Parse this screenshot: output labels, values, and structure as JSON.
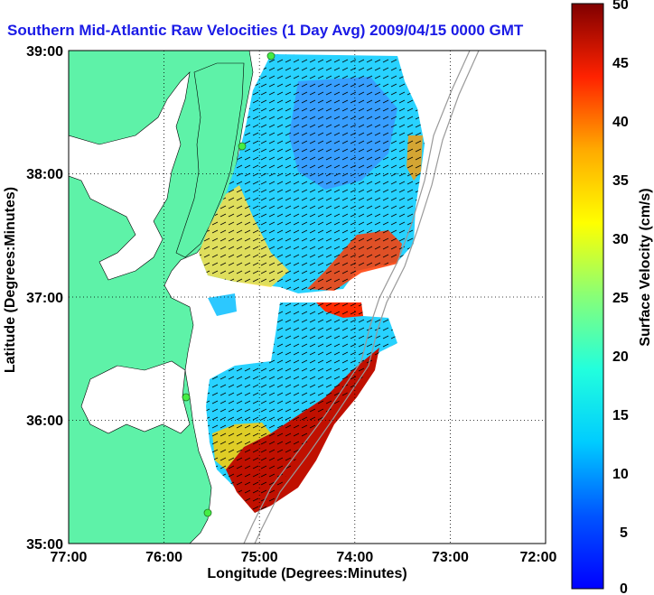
{
  "title": "Southern Mid-Atlantic Raw Velocities (1 Day Avg) 2009/04/15 0000 GMT",
  "map": {
    "xlabel": "Longitude (Degrees:Minutes)",
    "ylabel": "Latitude (Degrees:Minutes)",
    "x_ticks": [
      "77:00",
      "76:00",
      "75:00",
      "74:00",
      "73:00",
      "72:00"
    ],
    "y_ticks": [
      "39:00",
      "38:00",
      "37:00",
      "36:00",
      "35:00"
    ],
    "lon_range": [
      -77,
      -72
    ],
    "lat_range": [
      35,
      39
    ],
    "land_color": "#5ef2a8",
    "grid": "dotted"
  },
  "colorbar": {
    "label": "Surface Velocity (cm/s)",
    "ticks": [
      "50",
      "45",
      "40",
      "35",
      "30",
      "25",
      "20",
      "15",
      "10",
      "5",
      "0"
    ],
    "range": [
      0,
      50
    ],
    "colormap": "jet"
  },
  "chart_data": {
    "type": "heatmap",
    "title": "Southern Mid-Atlantic Raw Velocities (1 Day Avg) 2009/04/15 0000 GMT",
    "xlabel": "Longitude (Degrees:Minutes)",
    "ylabel": "Latitude (Degrees:Minutes)",
    "xlim": [
      -77,
      -72
    ],
    "ylim": [
      35,
      39
    ],
    "colorbar_label": "Surface Velocity (cm/s)",
    "colorbar_range": [
      0,
      50
    ],
    "grid": true
  }
}
